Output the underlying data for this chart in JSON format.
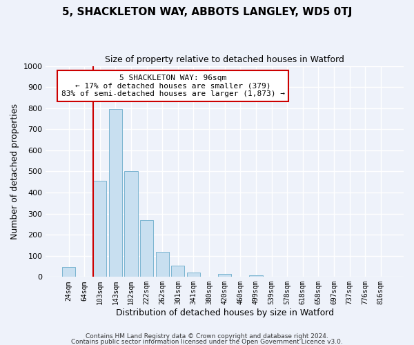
{
  "title": "5, SHACKLETON WAY, ABBOTS LANGLEY, WD5 0TJ",
  "subtitle": "Size of property relative to detached houses in Watford",
  "xlabel": "Distribution of detached houses by size in Watford",
  "ylabel": "Number of detached properties",
  "bar_labels": [
    "24sqm",
    "64sqm",
    "103sqm",
    "143sqm",
    "182sqm",
    "222sqm",
    "262sqm",
    "301sqm",
    "341sqm",
    "380sqm",
    "420sqm",
    "460sqm",
    "499sqm",
    "539sqm",
    "578sqm",
    "618sqm",
    "658sqm",
    "697sqm",
    "737sqm",
    "776sqm",
    "816sqm"
  ],
  "bar_values": [
    47,
    0,
    457,
    795,
    500,
    270,
    120,
    55,
    20,
    0,
    15,
    0,
    8,
    0,
    0,
    0,
    0,
    0,
    0,
    0,
    0
  ],
  "bar_color": "#c8dff0",
  "bar_edge_color": "#7ab4d0",
  "vline_bar_index": 2,
  "vline_color": "#cc0000",
  "annotation_line1": "5 SHACKLETON WAY: 96sqm",
  "annotation_line2": "← 17% of detached houses are smaller (379)",
  "annotation_line3": "83% of semi-detached houses are larger (1,873) →",
  "ylim": [
    0,
    1000
  ],
  "yticks": [
    0,
    100,
    200,
    300,
    400,
    500,
    600,
    700,
    800,
    900,
    1000
  ],
  "footer1": "Contains HM Land Registry data © Crown copyright and database right 2024.",
  "footer2": "Contains public sector information licensed under the Open Government Licence v3.0.",
  "background_color": "#eef2fa",
  "plot_bg_color": "#eef2fa",
  "grid_color": "white",
  "title_fontsize": 11,
  "subtitle_fontsize": 9
}
